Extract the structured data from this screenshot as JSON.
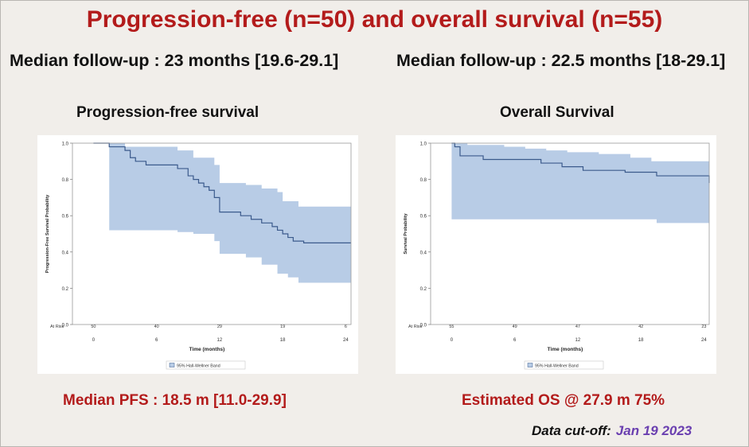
{
  "title": "Progression-free (n=50) and overall survival (n=55)",
  "left": {
    "followup": "Median follow-up : 23 months [19.6-29.1]",
    "heading": "Progression-free survival",
    "stat": "Median PFS : 18.5 m [11.0-29.9]"
  },
  "right": {
    "followup": "Median follow-up : 22.5 months [18-29.1]",
    "heading": "Overall Survival",
    "stat": "Estimated OS @ 27.9 m 75%"
  },
  "cutoff": {
    "label": "Data cut-off:",
    "date": "Jan 19 2023"
  },
  "colors": {
    "band": "#b8cce6",
    "line": "#3b5a8c",
    "title_red": "#b31b1b",
    "date_purple": "#6a3fb0"
  },
  "chart_data": [
    {
      "type": "line",
      "title": "Progression-free survival",
      "xlabel": "Time (months)",
      "ylabel": "Progression-Free Survival Probability",
      "xlim": [
        -2,
        24.5
      ],
      "ylim": [
        0,
        1
      ],
      "xticks": [
        0,
        6,
        12,
        18,
        24
      ],
      "yticks": [
        0.0,
        0.2,
        0.4,
        0.6,
        0.8,
        1.0
      ],
      "at_risk_label": "At Risk",
      "at_risk": [
        {
          "x": 0,
          "n": "50"
        },
        {
          "x": 6,
          "n": "40"
        },
        {
          "x": 12,
          "n": "29"
        },
        {
          "x": 18,
          "n": "19"
        },
        {
          "x": 24,
          "n": "6"
        }
      ],
      "legend": "95% Hall-Wellner Band",
      "survival": {
        "t": [
          0,
          1.5,
          3.0,
          3.5,
          4.0,
          5.0,
          8.0,
          9.0,
          9.5,
          10.0,
          10.5,
          11.0,
          11.5,
          12.0,
          14.0,
          15.0,
          16.0,
          17.0,
          17.5,
          18.0,
          18.5,
          19.0,
          20.0,
          24.5
        ],
        "s": [
          1.0,
          0.98,
          0.96,
          0.92,
          0.9,
          0.88,
          0.86,
          0.82,
          0.8,
          0.78,
          0.76,
          0.74,
          0.7,
          0.62,
          0.6,
          0.58,
          0.56,
          0.54,
          0.52,
          0.5,
          0.48,
          0.46,
          0.45,
          0.45
        ]
      },
      "band_upper": {
        "t": [
          1.5,
          3.0,
          8.0,
          9.5,
          11.5,
          12.0,
          14.5,
          16.0,
          17.5,
          18.0,
          19.5,
          24.5
        ],
        "v": [
          1.0,
          0.98,
          0.96,
          0.92,
          0.88,
          0.78,
          0.77,
          0.75,
          0.73,
          0.68,
          0.65,
          0.65
        ]
      },
      "band_lower": {
        "t": [
          1.5,
          8.0,
          9.5,
          11.5,
          12.0,
          14.5,
          16.0,
          17.5,
          18.5,
          19.5,
          24.5
        ],
        "v": [
          0.52,
          0.51,
          0.5,
          0.46,
          0.39,
          0.37,
          0.33,
          0.28,
          0.26,
          0.23,
          0.23
        ]
      }
    },
    {
      "type": "line",
      "title": "Overall Survival",
      "xlabel": "Time (months)",
      "ylabel": "Survival Probability",
      "xlim": [
        -2,
        24.5
      ],
      "ylim": [
        0,
        1
      ],
      "xticks": [
        0,
        6,
        12,
        18,
        24
      ],
      "yticks": [
        0.0,
        0.2,
        0.4,
        0.6,
        0.8,
        1.0
      ],
      "at_risk_label": "At Risk",
      "at_risk": [
        {
          "x": 0,
          "n": "55"
        },
        {
          "x": 6,
          "n": "49"
        },
        {
          "x": 12,
          "n": "47"
        },
        {
          "x": 18,
          "n": "42"
        },
        {
          "x": 24,
          "n": "23"
        }
      ],
      "legend": "95% Hall-Wellner Band",
      "survival": {
        "t": [
          0,
          0.3,
          0.8,
          3.0,
          8.5,
          10.5,
          12.5,
          16.5,
          19.5,
          24.5
        ],
        "s": [
          1.0,
          0.98,
          0.93,
          0.91,
          0.89,
          0.87,
          0.85,
          0.84,
          0.82,
          0.78
        ]
      },
      "band_upper": {
        "t": [
          0,
          1.5,
          5.0,
          7.0,
          9.0,
          11.0,
          14.0,
          17.0,
          19.0,
          24.5
        ],
        "v": [
          1.0,
          0.99,
          0.98,
          0.97,
          0.96,
          0.95,
          0.94,
          0.92,
          0.9,
          0.9
        ]
      },
      "band_lower": {
        "t": [
          0,
          19.5,
          24.5
        ],
        "v": [
          0.58,
          0.56,
          0.56
        ]
      }
    }
  ]
}
